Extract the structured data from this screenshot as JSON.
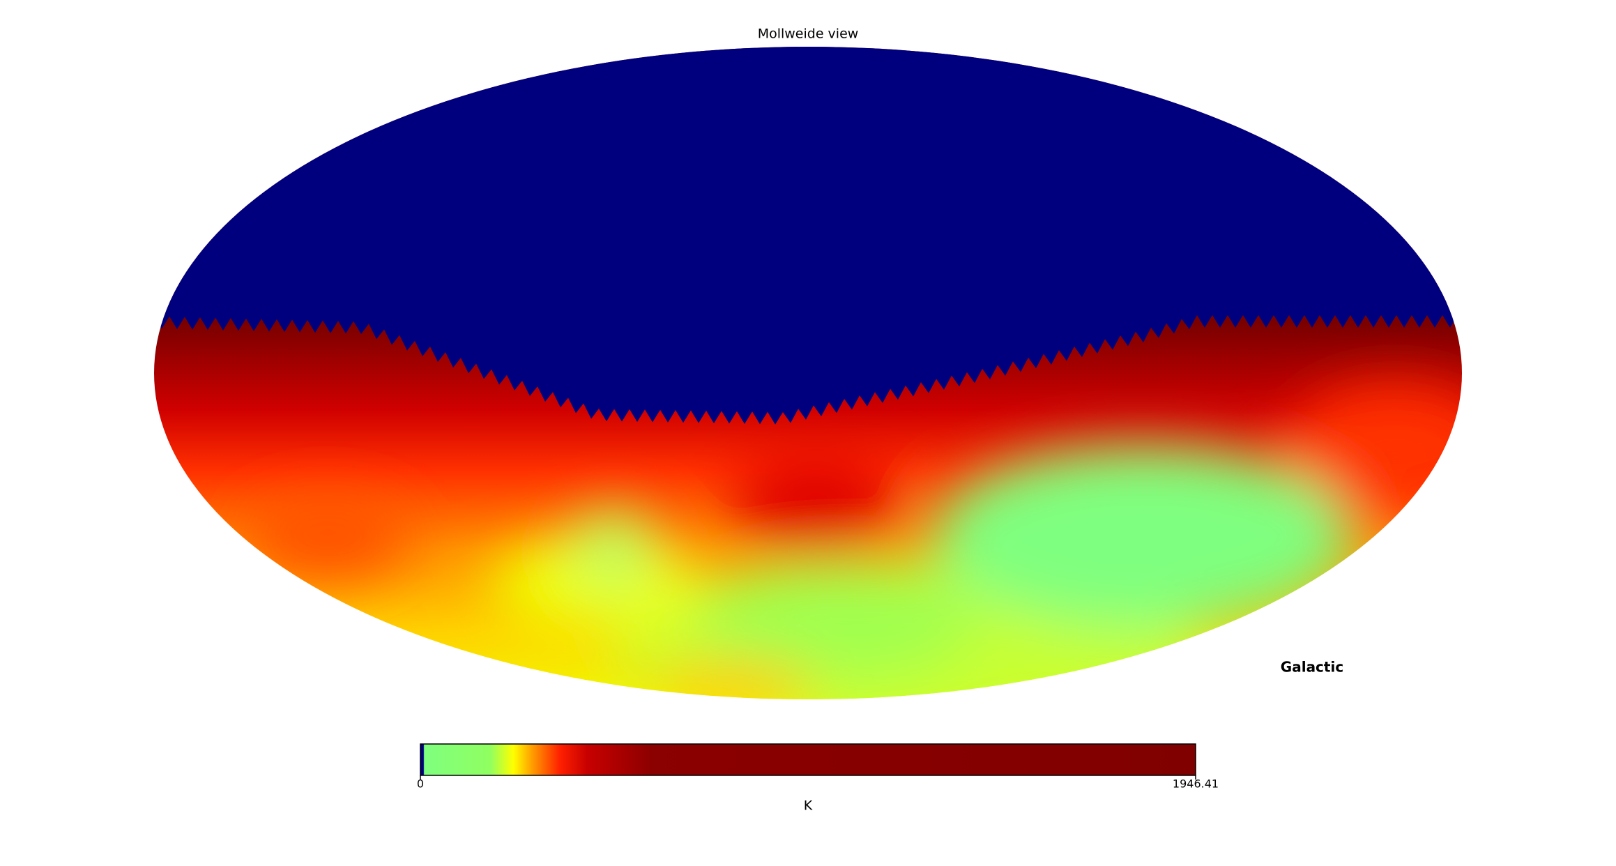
{
  "chart_data": {
    "type": "mollweide",
    "title": "Mollweide view",
    "coord": "Galactic",
    "colorbar_label": "K",
    "clim": [
      0,
      1946.41
    ],
    "cticks": [
      0,
      1946.41
    ]
  }
}
